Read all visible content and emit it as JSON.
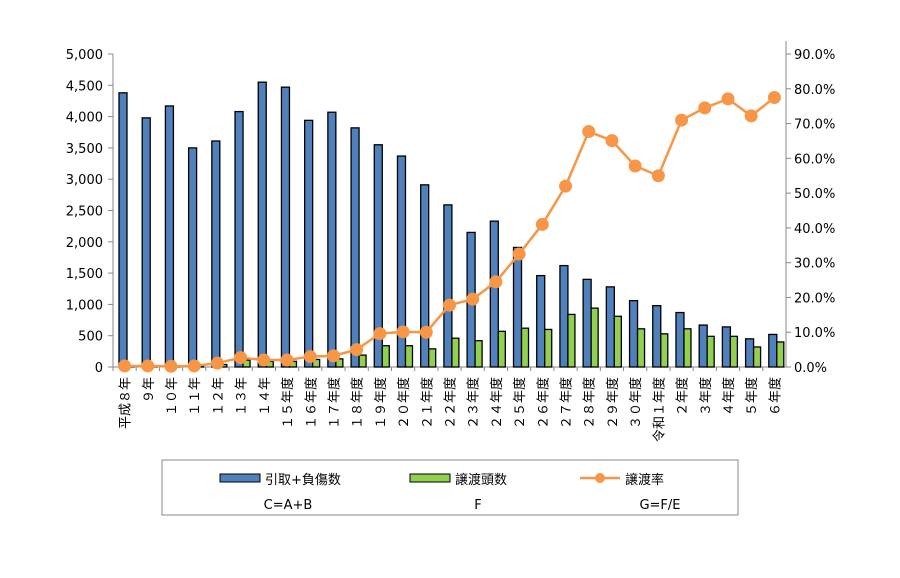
{
  "chart_data": {
    "type": "bar",
    "categories": [
      "平成８年",
      "９年",
      "１０年",
      "１１年",
      "１２年",
      "１３年",
      "１４年",
      "１５年度",
      "１６年度",
      "１７年度",
      "１８年度",
      "１９年度",
      "２０年度",
      "２１年度",
      "２２年度",
      "２３年度",
      "２４年度",
      "２５年度",
      "２６年度",
      "２７年度",
      "２８年度",
      "２９年度",
      "３０年度",
      "令和１年度",
      "２年度",
      "３年度",
      "４年度",
      "５年度",
      "６年度"
    ],
    "series": [
      {
        "name": "引取+負傷数",
        "sublabel": "C=A+B",
        "type": "bar",
        "axis": "left",
        "color": "#4F81BD",
        "values": [
          4380,
          3980,
          4170,
          3500,
          3610,
          4080,
          4550,
          4470,
          3940,
          4070,
          3820,
          3550,
          3370,
          2910,
          2590,
          2150,
          2330,
          1910,
          1460,
          1620,
          1400,
          1280,
          1060,
          980,
          870,
          670,
          640,
          450,
          520
        ]
      },
      {
        "name": "譲渡頭数",
        "sublabel": "F",
        "type": "bar",
        "axis": "left",
        "color": "#92D050",
        "values": [
          10,
          10,
          10,
          10,
          40,
          110,
          90,
          90,
          120,
          130,
          190,
          340,
          340,
          290,
          460,
          420,
          570,
          620,
          600,
          840,
          940,
          810,
          610,
          530,
          610,
          490,
          490,
          320,
          400
        ]
      },
      {
        "name": "譲渡率",
        "sublabel": "G=F/E",
        "type": "line",
        "axis": "right",
        "color": "#F79646",
        "values": [
          0.3,
          0.3,
          0.2,
          0.3,
          1.1,
          2.7,
          2.0,
          2.0,
          3.0,
          3.2,
          5.0,
          9.6,
          10.1,
          10.0,
          17.8,
          19.5,
          24.5,
          32.5,
          41.0,
          52.0,
          67.7,
          65.1,
          57.8,
          55.0,
          71.0,
          74.5,
          77.1,
          72.2,
          77.5
        ]
      }
    ],
    "yleft": {
      "ylim": [
        0,
        5000
      ],
      "ticks": [
        "0",
        "500",
        "1,000",
        "1,500",
        "2,000",
        "2,500",
        "3,000",
        "3,500",
        "4,000",
        "4,500",
        "5,000"
      ]
    },
    "yright": {
      "ylim": [
        0,
        90
      ],
      "ticks": [
        "0.0%",
        "10.0%",
        "20.0%",
        "30.0%",
        "40.0%",
        "50.0%",
        "60.0%",
        "70.0%",
        "80.0%",
        "90.0%"
      ]
    },
    "grid": false,
    "legend": "bottom"
  }
}
